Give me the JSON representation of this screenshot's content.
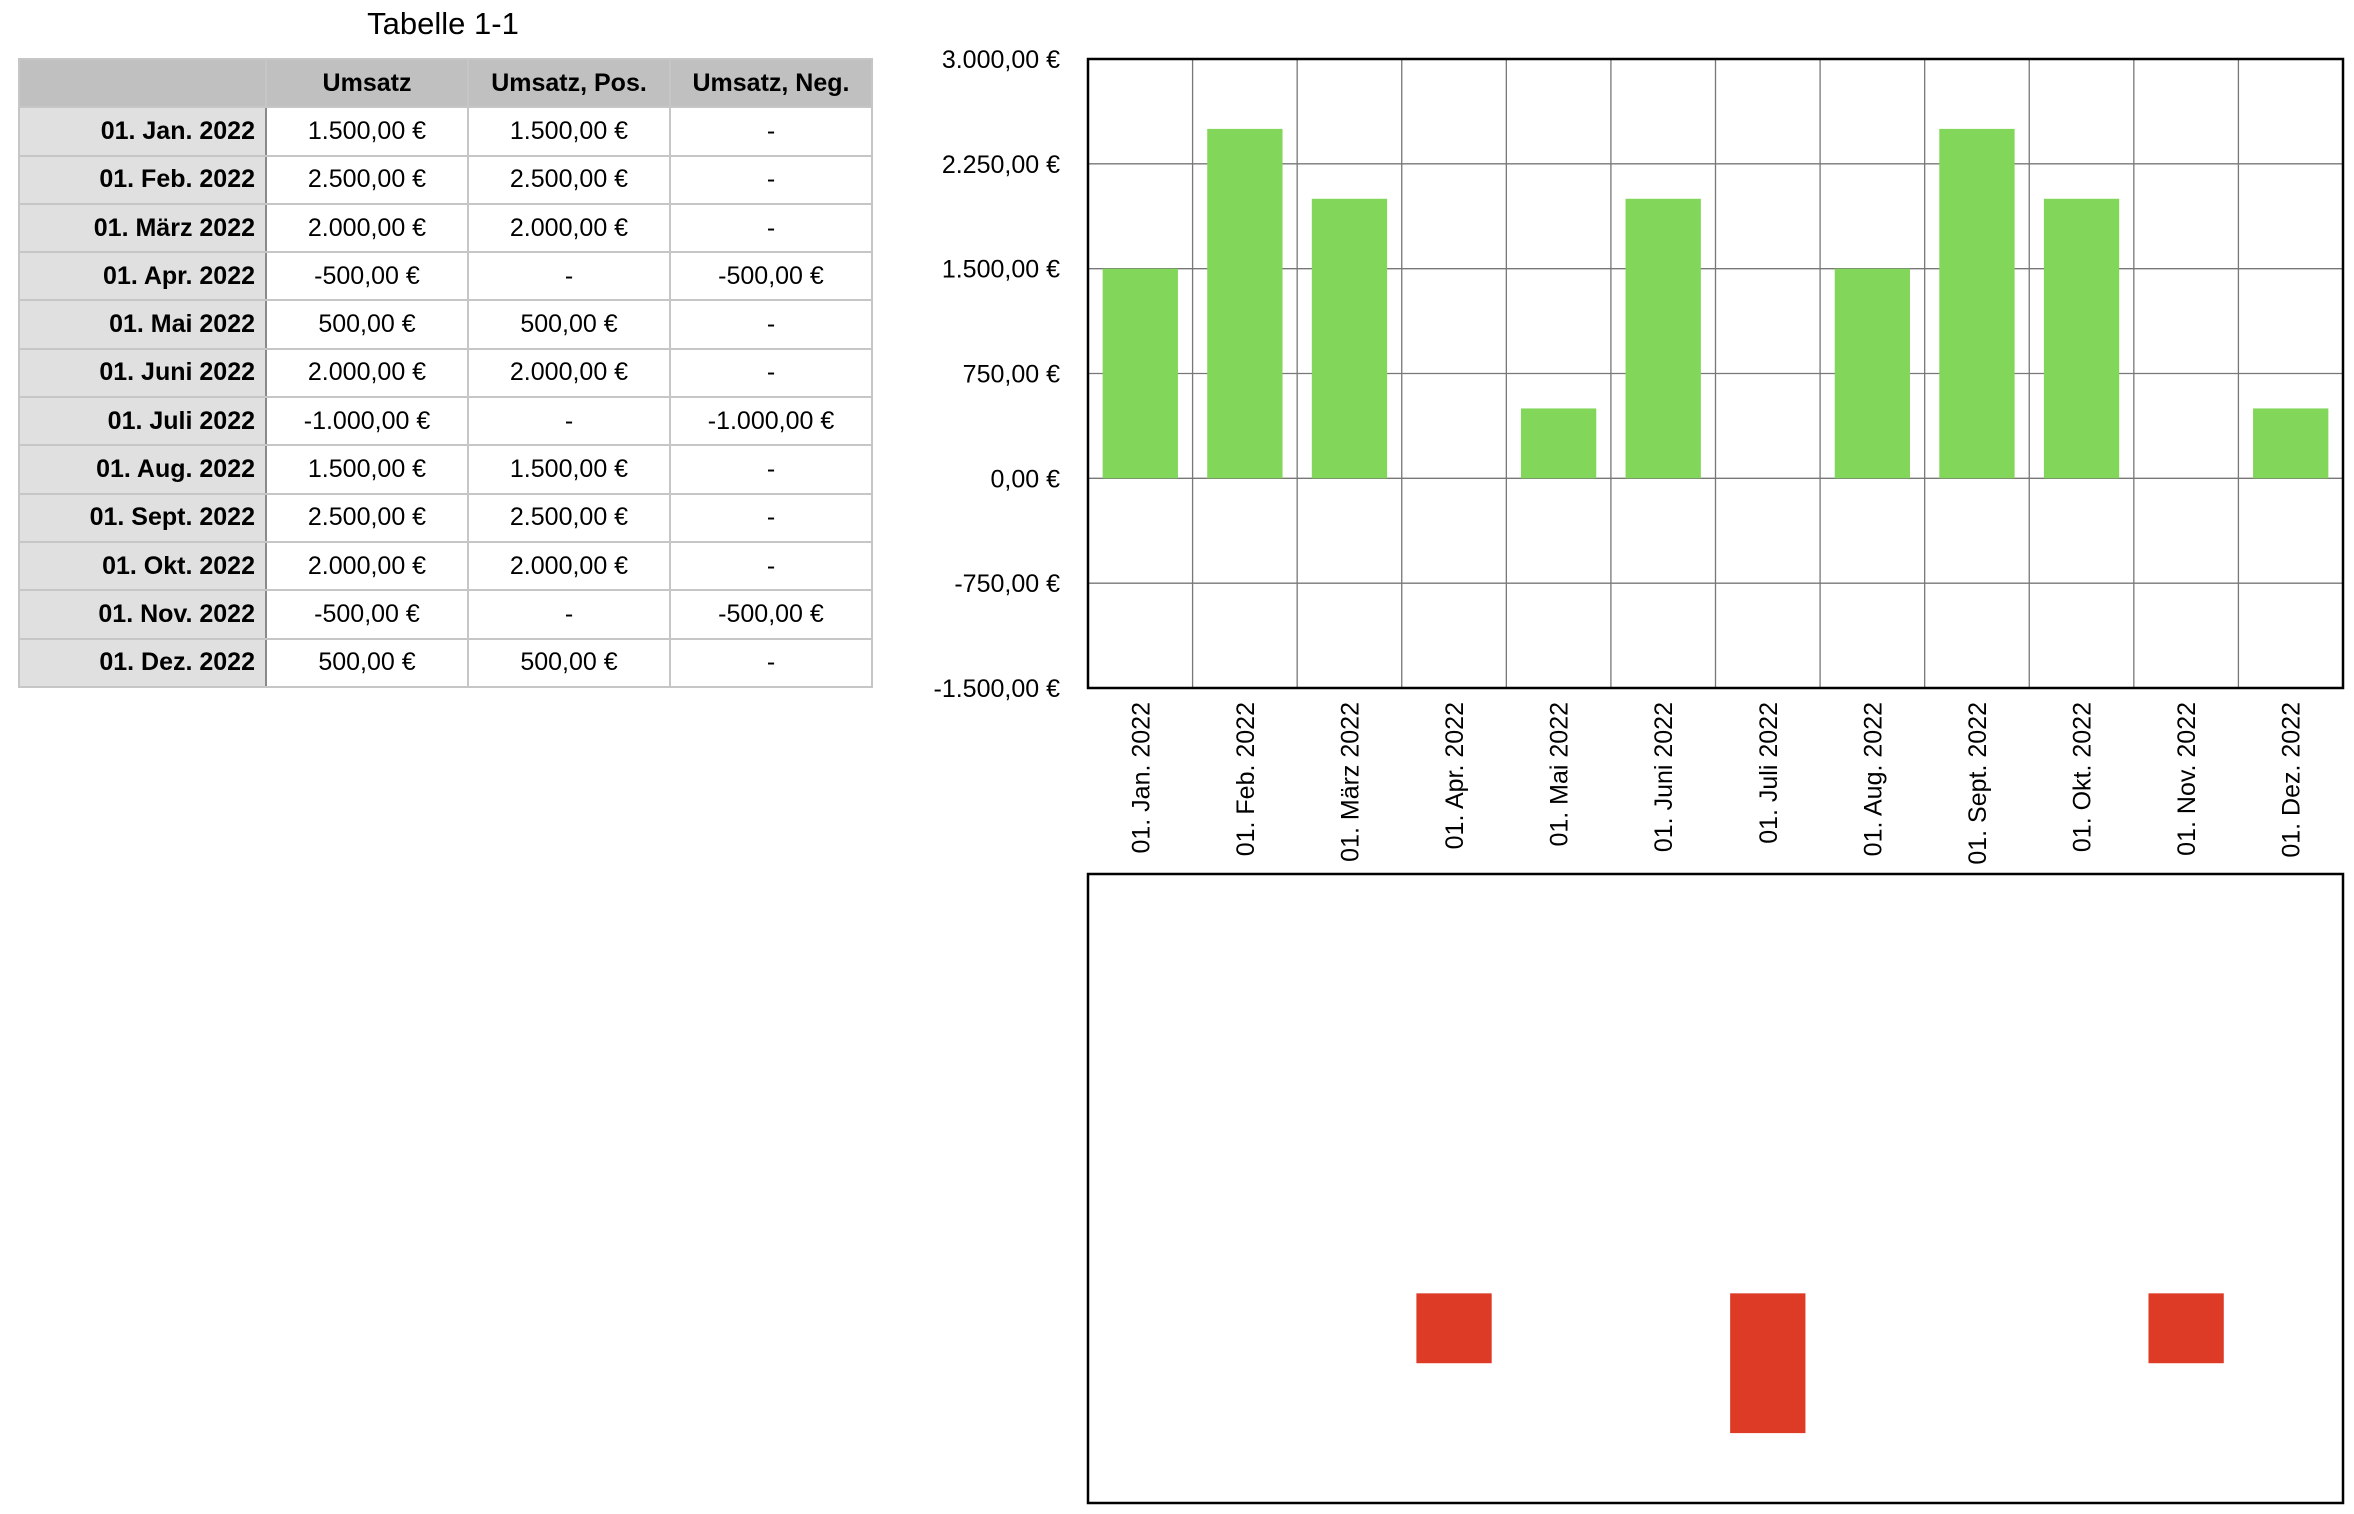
{
  "table": {
    "title": "Tabelle 1-1",
    "headers": [
      "",
      "Umsatz",
      "Umsatz, Pos.",
      "Umsatz, Neg."
    ],
    "rows": [
      [
        "01. Jan. 2022",
        "1.500,00 €",
        "1.500,00 €",
        "-"
      ],
      [
        "01. Feb. 2022",
        "2.500,00 €",
        "2.500,00 €",
        "-"
      ],
      [
        "01. März 2022",
        "2.000,00 €",
        "2.000,00 €",
        "-"
      ],
      [
        "01. Apr. 2022",
        "-500,00 €",
        "-",
        "-500,00 €"
      ],
      [
        "01. Mai 2022",
        "500,00 €",
        "500,00 €",
        "-"
      ],
      [
        "01. Juni 2022",
        "2.000,00 €",
        "2.000,00 €",
        "-"
      ],
      [
        "01. Juli 2022",
        "-1.000,00 €",
        "-",
        "-1.000,00 €"
      ],
      [
        "01. Aug. 2022",
        "1.500,00 €",
        "1.500,00 €",
        "-"
      ],
      [
        "01. Sept. 2022",
        "2.500,00 €",
        "2.500,00 €",
        "-"
      ],
      [
        "01. Okt. 2022",
        "2.000,00 €",
        "2.000,00 €",
        "-"
      ],
      [
        "01. Nov. 2022",
        "-500,00 €",
        "-",
        "-500,00 €"
      ],
      [
        "01. Dez. 2022",
        "500,00 €",
        "500,00 €",
        "-"
      ]
    ]
  },
  "chart_data": [
    {
      "type": "bar",
      "categories": [
        "01. Jan. 2022",
        "01. Feb. 2022",
        "01. März 2022",
        "01. Apr. 2022",
        "01. Mai 2022",
        "01. Juni 2022",
        "01. Juli 2022",
        "01. Aug. 2022",
        "01. Sept. 2022",
        "01. Okt. 2022",
        "01. Nov. 2022",
        "01. Dez. 2022"
      ],
      "series": [
        {
          "values": [
            1500,
            2500,
            2000,
            null,
            500,
            2000,
            null,
            1500,
            2500,
            2000,
            null,
            500
          ],
          "color": "#82d65a"
        }
      ],
      "ylim": [
        -1500,
        3000
      ],
      "yticks": [
        3000,
        2250,
        1500,
        750,
        0,
        -750,
        -1500
      ],
      "ytick_labels": [
        "3.000,00 €",
        "2.250,00 €",
        "1.500,00 €",
        "750,00 €",
        "0,00 €",
        "-750,00 €",
        "-1.500,00 €"
      ],
      "grid": true,
      "title": "",
      "xlabel": "",
      "ylabel": ""
    },
    {
      "type": "bar",
      "categories": [
        "01. Jan. 2022",
        "01. Feb. 2022",
        "01. März 2022",
        "01. Apr. 2022",
        "01. Mai 2022",
        "01. Juni 2022",
        "01. Juli 2022",
        "01. Aug. 2022",
        "01. Sept. 2022",
        "01. Okt. 2022",
        "01. Nov. 2022",
        "01. Dez. 2022"
      ],
      "series": [
        {
          "values": [
            null,
            null,
            null,
            -500,
            null,
            null,
            -1000,
            null,
            null,
            null,
            -500,
            null
          ],
          "color": "#dd3b26"
        }
      ],
      "ylim": [
        -1500,
        3000
      ],
      "grid": false,
      "title": "",
      "xlabel": "",
      "ylabel": ""
    }
  ]
}
